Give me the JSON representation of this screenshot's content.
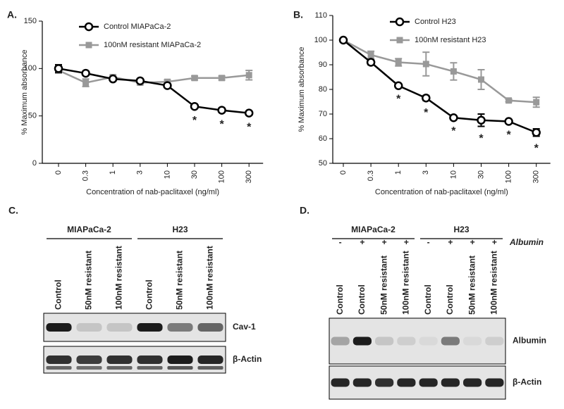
{
  "chart_data": [
    {
      "type": "line",
      "panel": "A.",
      "categories": [
        "0",
        "0.3",
        "1",
        "3",
        "10",
        "30",
        "100",
        "300"
      ],
      "xlabel": "Concentration of nab-paclitaxel (ng/ml)",
      "ylabel": "% Maximum absorbance",
      "ylim": [
        0,
        150
      ],
      "yticks": [
        0,
        50,
        100,
        150
      ],
      "series": [
        {
          "name": "Control MIAPaCa-2",
          "color": "#000000",
          "marker": "circle",
          "values": [
            100,
            95,
            89,
            87,
            82,
            60,
            56,
            53
          ],
          "errors": [
            4,
            2,
            2,
            2,
            2,
            2,
            2,
            2
          ]
        },
        {
          "name": "100nM resistant MIAPaCa-2",
          "color": "#999999",
          "marker": "square",
          "values": [
            98,
            85,
            91,
            85,
            86,
            90,
            90,
            93
          ],
          "errors": [
            3,
            4,
            2,
            2,
            2,
            2,
            2,
            5
          ]
        }
      ],
      "annotations": [
        {
          "category": "30",
          "text": "*"
        },
        {
          "category": "100",
          "text": "*"
        },
        {
          "category": "300",
          "text": "*"
        }
      ]
    },
    {
      "type": "line",
      "panel": "B.",
      "categories": [
        "0",
        "0.3",
        "1",
        "3",
        "10",
        "30",
        "100",
        "300"
      ],
      "xlabel": "Concentration of nab-paclitaxel (ng/ml)",
      "ylabel": "% Maximum absorbance",
      "ylim": [
        50,
        110
      ],
      "yticks": [
        50,
        60,
        70,
        80,
        90,
        100,
        110
      ],
      "series": [
        {
          "name": "Control H23",
          "color": "#000000",
          "marker": "circle",
          "values": [
            100,
            91,
            81.5,
            76.5,
            68.5,
            67.5,
            67,
            62.5
          ],
          "errors": [
            0.5,
            1,
            0.5,
            1,
            0.5,
            2.5,
            0.5,
            1.5
          ]
        },
        {
          "name": "100nM resistant H23",
          "color": "#999999",
          "marker": "square",
          "values": [
            100,
            94,
            91,
            90.3,
            87.3,
            84,
            75.5,
            74.8
          ],
          "errors": [
            0.5,
            1.5,
            1.5,
            4.8,
            3.5,
            4,
            0.5,
            2
          ]
        }
      ],
      "annotations": [
        {
          "category": "1",
          "text": "*"
        },
        {
          "category": "3",
          "text": "*"
        },
        {
          "category": "10",
          "text": "*"
        },
        {
          "category": "30",
          "text": "*"
        },
        {
          "category": "100",
          "text": "*"
        },
        {
          "category": "300",
          "text": "*"
        }
      ]
    }
  ],
  "blots": [
    {
      "panel": "C.",
      "groups": [
        "MIAPaCa-2",
        "H23"
      ],
      "lanes": [
        "Control",
        "50nM resistant",
        "100nM resistant",
        "Control",
        "50nM resistant",
        "100nM resistant"
      ],
      "rows": [
        "Cav-1",
        "β-Actin"
      ]
    },
    {
      "panel": "D.",
      "groups": [
        "MIAPaCa-2",
        "H23"
      ],
      "treatment": "Albumin",
      "signs": [
        "-",
        "+",
        "+",
        "+",
        "-",
        "+",
        "+",
        "+"
      ],
      "lanes": [
        "Control",
        "Control",
        "50nM resistant",
        "100nM resistant",
        "Control",
        "Control",
        "50nM resistant",
        "100nM resistant"
      ],
      "rows": [
        "Albumin",
        "β-Actin"
      ]
    }
  ]
}
